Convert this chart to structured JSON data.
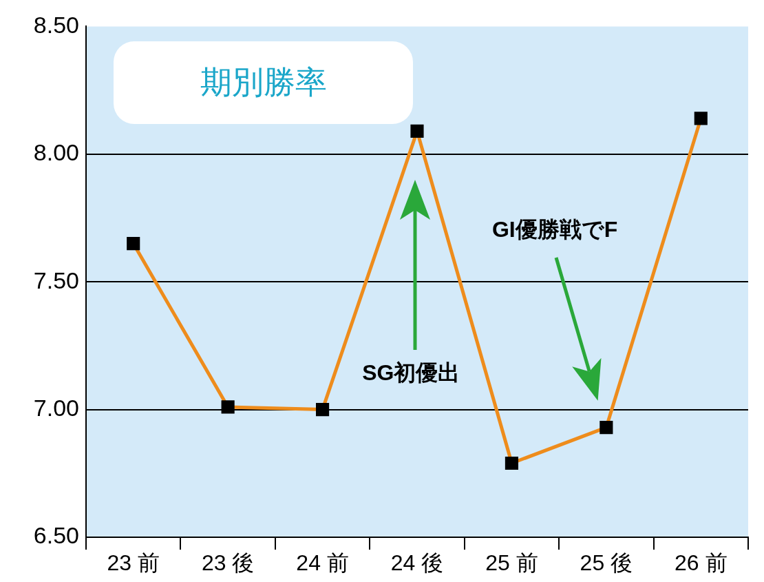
{
  "chart_data": {
    "type": "line",
    "title": "期別勝率",
    "categories": [
      "23 前",
      "23 後",
      "24 前",
      "24 後",
      "25 前",
      "25 後",
      "26 前"
    ],
    "series": [
      {
        "color": "#ee8c1c",
        "values": [
          7.65,
          7.01,
          7.0,
          8.09,
          6.79,
          6.93,
          8.14
        ]
      }
    ],
    "ylim": [
      6.5,
      8.5
    ],
    "yticks": [
      {
        "value": 6.5,
        "label": "6.50"
      },
      {
        "value": 7.0,
        "label": "7.00"
      },
      {
        "value": 7.5,
        "label": "7.50"
      },
      {
        "value": 8.0,
        "label": "8.00"
      },
      {
        "value": 8.5,
        "label": "8.50"
      }
    ],
    "grid": "y",
    "legend": false,
    "marker": "square",
    "line_style": "solid",
    "annotations": [
      "SG初優出",
      "GI優勝戦でF"
    ]
  }
}
